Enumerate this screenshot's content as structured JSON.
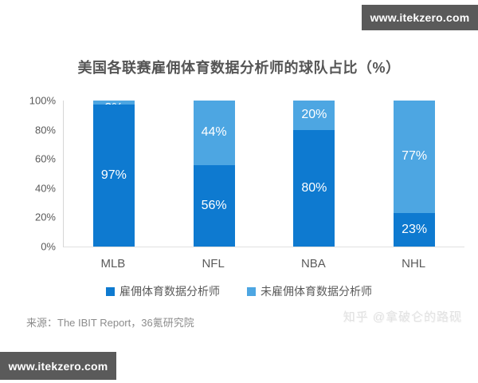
{
  "watermark_top": {
    "text": "www.itekzero.com"
  },
  "watermark_bottom": {
    "text": "www.itekzero.com"
  },
  "header": {
    "title": "美国各联赛雇佣体育数据分析师的球队占比（%）"
  },
  "footer": {
    "source": "来源：The IBIT Report，36氪研究院",
    "zhihu_watermark": "知乎 @拿破仑的路砚"
  },
  "colors": {
    "employed_blue": "#0e7ad0",
    "not_employed_blue": "#4da6e2",
    "watermark_bar_bg": "#5a5a5a",
    "axis_line": "#d6d6d6",
    "text_gray": "#5a5a5a"
  },
  "chart_data": {
    "type": "bar",
    "stacked": true,
    "title": "美国各联赛雇佣体育数据分析师的球队占比（%）",
    "categories": [
      "MLB",
      "NFL",
      "NBA",
      "NHL"
    ],
    "series": [
      {
        "name": "雇佣体育数据分析师",
        "color": "#0e7ad0",
        "values": [
          97,
          56,
          80,
          23
        ]
      },
      {
        "name": "未雇佣体育数据分析师",
        "color": "#4da6e2",
        "values": [
          3,
          44,
          20,
          77
        ]
      }
    ],
    "xlabel": "",
    "ylabel": "",
    "ylim": [
      0,
      100
    ],
    "yticks": [
      "0%",
      "20%",
      "40%",
      "60%",
      "80%",
      "100%"
    ],
    "value_label_suffix": "%",
    "grid": false,
    "legend_position": "bottom"
  }
}
